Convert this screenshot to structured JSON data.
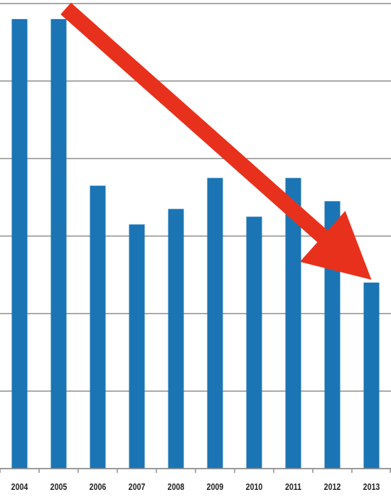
{
  "chart_data": {
    "type": "bar",
    "title": "",
    "xlabel": "",
    "ylabel": "",
    "categories": [
      "2004",
      "2005",
      "2006",
      "2007",
      "2008",
      "2009",
      "2010",
      "2011",
      "2012",
      "2013"
    ],
    "values": [
      5.8,
      5.8,
      3.65,
      3.15,
      3.35,
      3.75,
      3.25,
      3.75,
      3.45,
      2.4
    ],
    "ylim": [
      0,
      6
    ],
    "grid": true,
    "legend": "none",
    "bar_color": "#1b75b4",
    "annotations": [
      {
        "type": "trend-arrow",
        "direction": "down-right",
        "from_category": "2005",
        "to_category": "2013",
        "color": "#e8311c"
      }
    ]
  }
}
